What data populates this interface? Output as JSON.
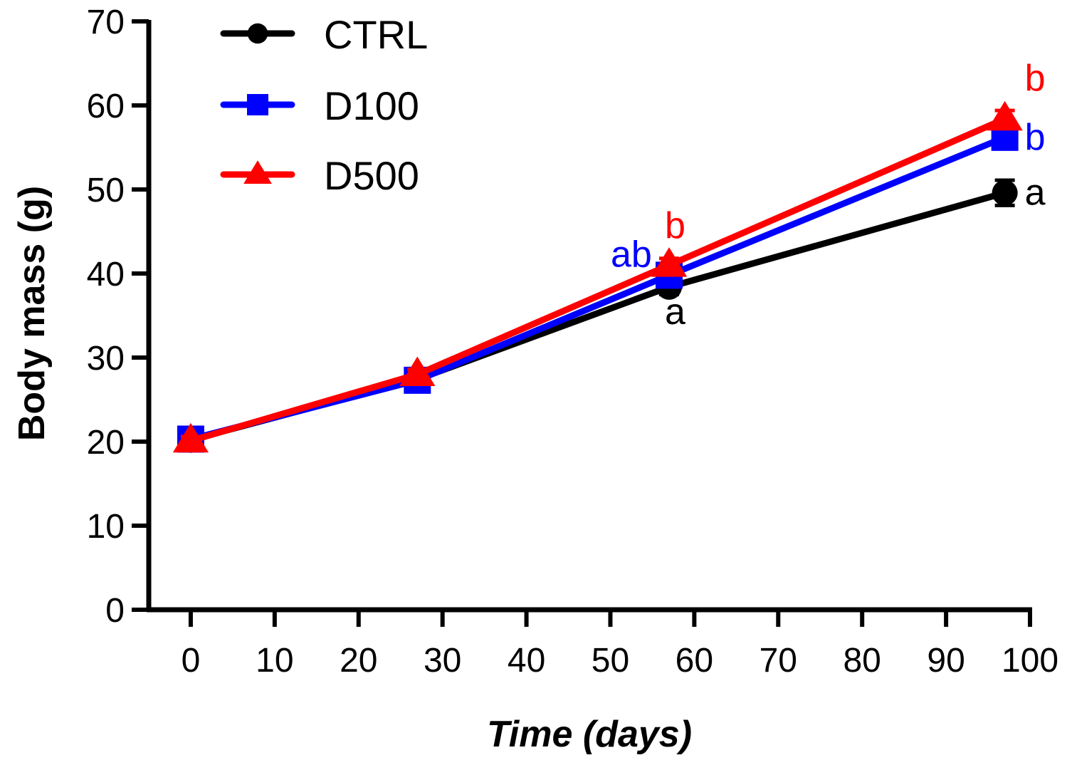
{
  "chart_data": {
    "type": "line",
    "title": "",
    "xlabel": "Time (days)",
    "ylabel": "Body mass (g)",
    "xlim": [
      -5,
      100
    ],
    "ylim": [
      0,
      70
    ],
    "xticks": [
      0,
      10,
      20,
      30,
      40,
      50,
      60,
      70,
      80,
      90,
      100
    ],
    "yticks": [
      0,
      10,
      20,
      30,
      40,
      50,
      60,
      70
    ],
    "grid": false,
    "legend_position": "top-left",
    "series": [
      {
        "name": "CTRL",
        "color": "#000000",
        "marker": "circle",
        "x": [
          0,
          27,
          57,
          97
        ],
        "y": [
          20.2,
          27.4,
          38.4,
          49.6
        ],
        "error": [
          0.5,
          0.6,
          0.9,
          1.5
        ],
        "annotations": [
          {
            "x": 57,
            "text": "a"
          },
          {
            "x": 97,
            "text": "a"
          }
        ]
      },
      {
        "name": "D100",
        "color": "#0000ff",
        "marker": "square",
        "x": [
          0,
          27,
          57,
          97
        ],
        "y": [
          20.3,
          27.3,
          39.8,
          56.2
        ],
        "error": [
          0.5,
          0.6,
          0.8,
          1.0
        ],
        "annotations": [
          {
            "x": 57,
            "text": "ab"
          },
          {
            "x": 97,
            "text": "b"
          }
        ]
      },
      {
        "name": "D500",
        "color": "#ff0000",
        "marker": "triangle",
        "x": [
          0,
          27,
          57,
          97
        ],
        "y": [
          20.1,
          28.0,
          41.0,
          58.4
        ],
        "error": [
          0.5,
          0.6,
          0.8,
          1.0
        ],
        "annotations": [
          {
            "x": 57,
            "text": "b"
          },
          {
            "x": 97,
            "text": "b"
          }
        ]
      }
    ]
  }
}
